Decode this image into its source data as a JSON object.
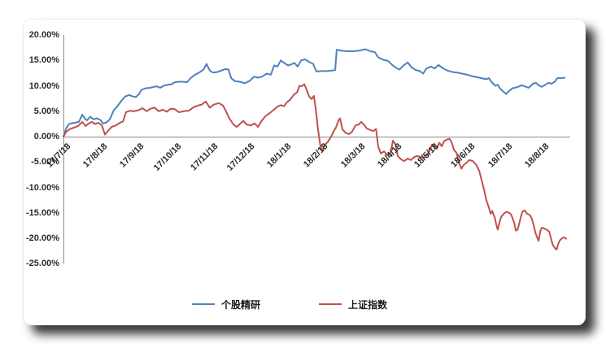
{
  "page": {
    "background": "#ffffff"
  },
  "card": {
    "background": "#ffffff",
    "border_color": "#ebebeb",
    "shadow_color": "rgba(0,0,0,0.78)"
  },
  "axis": {
    "line_color": "#8a8a8a",
    "label_color": "#2b2b2b"
  },
  "chart_data": {
    "type": "line",
    "title": "",
    "xlabel": "",
    "ylabel": "",
    "grid": false,
    "legend_position": "bottom",
    "ylim": [
      -25,
      20
    ],
    "y_tick_step": 5,
    "y_tick_labels": [
      "20.00%",
      "15.00%",
      "10.00%",
      "5.00%",
      "0.00%",
      "-5.00%",
      "-10.00%",
      "-15.00%",
      "-20.00%",
      "-25.00%"
    ],
    "x_tick_labels": [
      "17/7/18",
      "17/8/18",
      "17/9/18",
      "17/10/18",
      "17/11/18",
      "17/12/18",
      "18/1/18",
      "18/2/18",
      "18/3/18",
      "18/4/18",
      "18/5/18",
      "18/6/18",
      "18/7/18",
      "18/8/18"
    ],
    "x_unit": "months since 17/7/18 (fractional = within-month position)",
    "y_unit": "percent return",
    "series": [
      {
        "name": "个股精研",
        "color": "#4F81BD",
        "points": [
          [
            0,
            0
          ],
          [
            0.07,
            1.6
          ],
          [
            0.15,
            2.5
          ],
          [
            0.29,
            2.7
          ],
          [
            0.42,
            2.9
          ],
          [
            0.51,
            4.3
          ],
          [
            0.58,
            3.6
          ],
          [
            0.64,
            3.2
          ],
          [
            0.73,
            3.9
          ],
          [
            0.82,
            3.4
          ],
          [
            0.91,
            3.6
          ],
          [
            1.0,
            3.3
          ],
          [
            1.08,
            2.6
          ],
          [
            1.17,
            2.8
          ],
          [
            1.26,
            3.4
          ],
          [
            1.37,
            5.2
          ],
          [
            1.48,
            6.1
          ],
          [
            1.59,
            7.2
          ],
          [
            1.68,
            7.9
          ],
          [
            1.79,
            8.2
          ],
          [
            1.88,
            7.9
          ],
          [
            1.97,
            7.8
          ],
          [
            2.06,
            8.4
          ],
          [
            2.12,
            9.2
          ],
          [
            2.23,
            9.5
          ],
          [
            2.35,
            9.6
          ],
          [
            2.46,
            9.8
          ],
          [
            2.54,
            9.9
          ],
          [
            2.63,
            9.6
          ],
          [
            2.72,
            10.0
          ],
          [
            2.83,
            10.2
          ],
          [
            2.94,
            10.3
          ],
          [
            3.03,
            10.7
          ],
          [
            3.14,
            10.8
          ],
          [
            3.25,
            10.8
          ],
          [
            3.36,
            10.7
          ],
          [
            3.47,
            11.6
          ],
          [
            3.58,
            12.2
          ],
          [
            3.69,
            12.6
          ],
          [
            3.81,
            13.2
          ],
          [
            3.89,
            14.3
          ],
          [
            3.98,
            13.0
          ],
          [
            4.07,
            12.6
          ],
          [
            4.18,
            12.7
          ],
          [
            4.29,
            13.0
          ],
          [
            4.4,
            13.3
          ],
          [
            4.49,
            13.2
          ],
          [
            4.56,
            11.5
          ],
          [
            4.67,
            10.9
          ],
          [
            4.8,
            10.8
          ],
          [
            4.93,
            10.5
          ],
          [
            5.07,
            11.0
          ],
          [
            5.18,
            11.8
          ],
          [
            5.29,
            11.6
          ],
          [
            5.4,
            11.8
          ],
          [
            5.53,
            12.4
          ],
          [
            5.64,
            12.2
          ],
          [
            5.73,
            14.0
          ],
          [
            5.82,
            13.8
          ],
          [
            5.91,
            15.0
          ],
          [
            6.0,
            14.5
          ],
          [
            6.11,
            14.0
          ],
          [
            6.19,
            14.2
          ],
          [
            6.28,
            14.5
          ],
          [
            6.37,
            13.8
          ],
          [
            6.46,
            15.0
          ],
          [
            6.57,
            15.2
          ],
          [
            6.68,
            14.7
          ],
          [
            6.79,
            14.3
          ],
          [
            6.88,
            12.8
          ],
          [
            7.01,
            12.9
          ],
          [
            7.17,
            12.9
          ],
          [
            7.3,
            13.0
          ],
          [
            7.39,
            13.1
          ],
          [
            7.43,
            17.1
          ],
          [
            7.57,
            16.9
          ],
          [
            7.72,
            16.8
          ],
          [
            7.88,
            16.8
          ],
          [
            8.03,
            16.9
          ],
          [
            8.21,
            17.2
          ],
          [
            8.34,
            16.8
          ],
          [
            8.47,
            16.6
          ],
          [
            8.56,
            15.6
          ],
          [
            8.7,
            15.1
          ],
          [
            8.83,
            14.9
          ],
          [
            8.94,
            14.1
          ],
          [
            9.05,
            13.5
          ],
          [
            9.14,
            13.2
          ],
          [
            9.23,
            13.9
          ],
          [
            9.36,
            14.6
          ],
          [
            9.47,
            13.6
          ],
          [
            9.58,
            13.1
          ],
          [
            9.69,
            12.9
          ],
          [
            9.78,
            12.4
          ],
          [
            9.87,
            13.4
          ],
          [
            10.0,
            13.8
          ],
          [
            10.09,
            13.4
          ],
          [
            10.2,
            14.1
          ],
          [
            10.31,
            13.5
          ],
          [
            10.44,
            13.0
          ],
          [
            10.58,
            12.7
          ],
          [
            10.71,
            12.6
          ],
          [
            10.84,
            12.4
          ],
          [
            10.97,
            12.2
          ],
          [
            11.11,
            11.9
          ],
          [
            11.24,
            11.7
          ],
          [
            11.37,
            11.5
          ],
          [
            11.5,
            11.3
          ],
          [
            11.57,
            11.5
          ],
          [
            11.66,
            10.6
          ],
          [
            11.75,
            10.0
          ],
          [
            11.81,
            10.2
          ],
          [
            11.88,
            9.4
          ],
          [
            11.97,
            8.8
          ],
          [
            12.04,
            8.4
          ],
          [
            12.12,
            9.0
          ],
          [
            12.21,
            9.5
          ],
          [
            12.32,
            9.7
          ],
          [
            12.46,
            10.1
          ],
          [
            12.54,
            9.9
          ],
          [
            12.65,
            9.6
          ],
          [
            12.77,
            10.4
          ],
          [
            12.85,
            10.6
          ],
          [
            12.92,
            10.1
          ],
          [
            13.01,
            9.8
          ],
          [
            13.1,
            10.2
          ],
          [
            13.19,
            10.6
          ],
          [
            13.27,
            10.4
          ],
          [
            13.36,
            10.8
          ],
          [
            13.43,
            11.5
          ],
          [
            13.54,
            11.5
          ],
          [
            13.63,
            11.6
          ]
        ]
      },
      {
        "name": "上证指数",
        "color": "#C0504D",
        "points": [
          [
            0,
            0
          ],
          [
            0.07,
            0.9
          ],
          [
            0.15,
            1.4
          ],
          [
            0.29,
            1.8
          ],
          [
            0.4,
            2.1
          ],
          [
            0.51,
            2.9
          ],
          [
            0.6,
            2.1
          ],
          [
            0.69,
            2.6
          ],
          [
            0.77,
            2.9
          ],
          [
            0.86,
            2.5
          ],
          [
            0.95,
            2.7
          ],
          [
            1.04,
            2.3
          ],
          [
            1.13,
            0.4
          ],
          [
            1.22,
            1.2
          ],
          [
            1.31,
            1.9
          ],
          [
            1.42,
            2.2
          ],
          [
            1.53,
            2.7
          ],
          [
            1.62,
            3.0
          ],
          [
            1.7,
            4.8
          ],
          [
            1.81,
            5.1
          ],
          [
            1.92,
            5.0
          ],
          [
            2.04,
            5.2
          ],
          [
            2.15,
            5.6
          ],
          [
            2.26,
            5.0
          ],
          [
            2.37,
            5.5
          ],
          [
            2.48,
            5.7
          ],
          [
            2.59,
            5.0
          ],
          [
            2.7,
            5.3
          ],
          [
            2.81,
            4.9
          ],
          [
            2.92,
            5.5
          ],
          [
            3.03,
            5.4
          ],
          [
            3.14,
            4.8
          ],
          [
            3.27,
            5.0
          ],
          [
            3.41,
            5.1
          ],
          [
            3.54,
            5.8
          ],
          [
            3.65,
            6.1
          ],
          [
            3.76,
            6.3
          ],
          [
            3.87,
            6.9
          ],
          [
            3.98,
            5.7
          ],
          [
            4.09,
            6.3
          ],
          [
            4.23,
            6.6
          ],
          [
            4.34,
            6.1
          ],
          [
            4.42,
            5.0
          ],
          [
            4.51,
            3.6
          ],
          [
            4.62,
            2.4
          ],
          [
            4.71,
            1.9
          ],
          [
            4.8,
            2.5
          ],
          [
            4.89,
            3.1
          ],
          [
            4.98,
            2.4
          ],
          [
            5.09,
            2.2
          ],
          [
            5.2,
            2.6
          ],
          [
            5.29,
            1.9
          ],
          [
            5.38,
            3.0
          ],
          [
            5.49,
            4.0
          ],
          [
            5.6,
            4.6
          ],
          [
            5.71,
            5.2
          ],
          [
            5.82,
            5.9
          ],
          [
            5.91,
            6.2
          ],
          [
            6.0,
            6.0
          ],
          [
            6.08,
            6.8
          ],
          [
            6.17,
            7.3
          ],
          [
            6.26,
            8.2
          ],
          [
            6.35,
            8.7
          ],
          [
            6.42,
            10.0
          ],
          [
            6.48,
            9.9
          ],
          [
            6.55,
            10.3
          ],
          [
            6.61,
            9.3
          ],
          [
            6.68,
            7.9
          ],
          [
            6.75,
            7.4
          ],
          [
            6.81,
            8.0
          ],
          [
            6.86,
            5.5
          ],
          [
            6.92,
            1.5
          ],
          [
            6.99,
            -2.0
          ],
          [
            7.04,
            -2.8
          ],
          [
            7.1,
            -1.7
          ],
          [
            7.19,
            -1.0
          ],
          [
            7.28,
            0.0
          ],
          [
            7.35,
            1.1
          ],
          [
            7.41,
            1.8
          ],
          [
            7.48,
            3.2
          ],
          [
            7.52,
            3.6
          ],
          [
            7.59,
            1.4
          ],
          [
            7.68,
            0.7
          ],
          [
            7.77,
            0.5
          ],
          [
            7.85,
            1.0
          ],
          [
            7.94,
            2.2
          ],
          [
            8.03,
            2.4
          ],
          [
            8.1,
            2.9
          ],
          [
            8.19,
            2.2
          ],
          [
            8.25,
            1.6
          ],
          [
            8.34,
            1.3
          ],
          [
            8.43,
            1.1
          ],
          [
            8.5,
            1.5
          ],
          [
            8.56,
            -2.0
          ],
          [
            8.63,
            -3.3
          ],
          [
            8.72,
            -2.9
          ],
          [
            8.81,
            -3.7
          ],
          [
            8.89,
            -3.3
          ],
          [
            8.96,
            -0.8
          ],
          [
            9.03,
            -1.5
          ],
          [
            9.09,
            -3.8
          ],
          [
            9.18,
            -4.5
          ],
          [
            9.27,
            -4.8
          ],
          [
            9.36,
            -4.3
          ],
          [
            9.45,
            -4.6
          ],
          [
            9.54,
            -4.0
          ],
          [
            9.62,
            -3.8
          ],
          [
            9.71,
            -4.0
          ],
          [
            9.8,
            -4.2
          ],
          [
            9.89,
            -3.6
          ],
          [
            9.96,
            -2.7
          ],
          [
            10.02,
            -1.6
          ],
          [
            10.09,
            -1.9
          ],
          [
            10.15,
            -2.4
          ],
          [
            10.22,
            -1.2
          ],
          [
            10.29,
            -1.9
          ],
          [
            10.35,
            -0.9
          ],
          [
            10.42,
            -0.6
          ],
          [
            10.49,
            -0.4
          ],
          [
            10.55,
            -1.0
          ],
          [
            10.62,
            -2.6
          ],
          [
            10.69,
            -3.2
          ],
          [
            10.75,
            -5.0
          ],
          [
            10.82,
            -6.3
          ],
          [
            10.88,
            -5.6
          ],
          [
            10.95,
            -5.2
          ],
          [
            11.04,
            -4.6
          ],
          [
            11.13,
            -4.8
          ],
          [
            11.22,
            -5.5
          ],
          [
            11.31,
            -6.8
          ],
          [
            11.37,
            -8.5
          ],
          [
            11.44,
            -10.5
          ],
          [
            11.5,
            -12.5
          ],
          [
            11.57,
            -14.0
          ],
          [
            11.62,
            -15.2
          ],
          [
            11.66,
            -14.6
          ],
          [
            11.73,
            -16.0
          ],
          [
            11.77,
            -17.3
          ],
          [
            11.81,
            -18.3
          ],
          [
            11.86,
            -16.8
          ],
          [
            11.9,
            -15.8
          ],
          [
            11.97,
            -15.2
          ],
          [
            12.04,
            -14.8
          ],
          [
            12.1,
            -14.9
          ],
          [
            12.17,
            -15.3
          ],
          [
            12.21,
            -16.0
          ],
          [
            12.26,
            -17.0
          ],
          [
            12.3,
            -18.5
          ],
          [
            12.35,
            -18.3
          ],
          [
            12.39,
            -17.2
          ],
          [
            12.43,
            -16.0
          ],
          [
            12.48,
            -14.8
          ],
          [
            12.54,
            -14.5
          ],
          [
            12.61,
            -15.2
          ],
          [
            12.68,
            -15.4
          ],
          [
            12.74,
            -16.2
          ],
          [
            12.79,
            -17.5
          ],
          [
            12.83,
            -18.8
          ],
          [
            12.88,
            -19.8
          ],
          [
            12.92,
            -20.5
          ],
          [
            12.97,
            -18.5
          ],
          [
            13.01,
            -17.9
          ],
          [
            13.08,
            -18.1
          ],
          [
            13.14,
            -18.3
          ],
          [
            13.21,
            -18.7
          ],
          [
            13.25,
            -19.8
          ],
          [
            13.3,
            -21.2
          ],
          [
            13.36,
            -21.9
          ],
          [
            13.41,
            -22.2
          ],
          [
            13.45,
            -21.2
          ],
          [
            13.5,
            -20.4
          ],
          [
            13.56,
            -20.0
          ],
          [
            13.61,
            -19.8
          ],
          [
            13.67,
            -20.1
          ]
        ]
      }
    ]
  }
}
